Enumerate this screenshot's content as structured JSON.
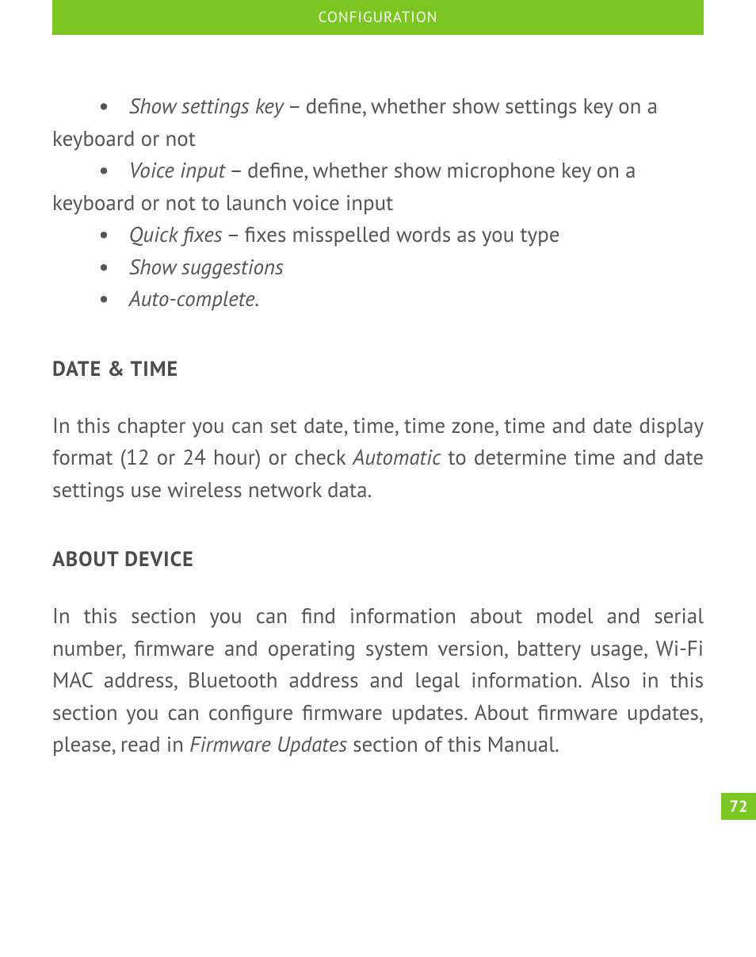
{
  "colors": {
    "accent": "#7cc623",
    "text": "#555555",
    "heading": "#4b4b4b",
    "header_text": "#ffffff",
    "background": "#ffffff"
  },
  "typography": {
    "body_fontsize_pt": 20,
    "heading_fontsize_pt": 20,
    "header_band_fontsize_pt": 14,
    "line_height": 1.5
  },
  "header": {
    "title": "CONFIGURATION"
  },
  "bullets": [
    {
      "term": "Show settings key",
      "sep": " – ",
      "rest": "define, whether show settings key on a keyboard or not"
    },
    {
      "term": "Voice input",
      "sep": " – ",
      "rest": "define, whether show microphone key on a keyboard or not to launch voice input"
    },
    {
      "term": "Quick fixes",
      "sep": " – ",
      "rest": "fixes misspelled words as you type"
    },
    {
      "term": "Show suggestions",
      "sep": "",
      "rest": ""
    },
    {
      "term": "Auto-complete.",
      "sep": "",
      "rest": ""
    }
  ],
  "sections": [
    {
      "heading": "DATE & TIME",
      "body_pre": "In this chapter you can set date, time, time zone, time and date display format (12 or 24 hour) or check ",
      "body_em": "Automatic",
      "body_post": " to determine time and date settings use wireless network data."
    },
    {
      "heading": "ABOUT DEVICE",
      "body_pre": "In this section you can find information about model and serial number, firmware and operating system version, battery usage, Wi-Fi MAC address, Bluetooth address and legal information. Also in this section you can configure firmware updates. About firmware updates, please, read in ",
      "body_em": "Firmware Updates",
      "body_post": " section of this Manual."
    }
  ],
  "page_number": "72"
}
